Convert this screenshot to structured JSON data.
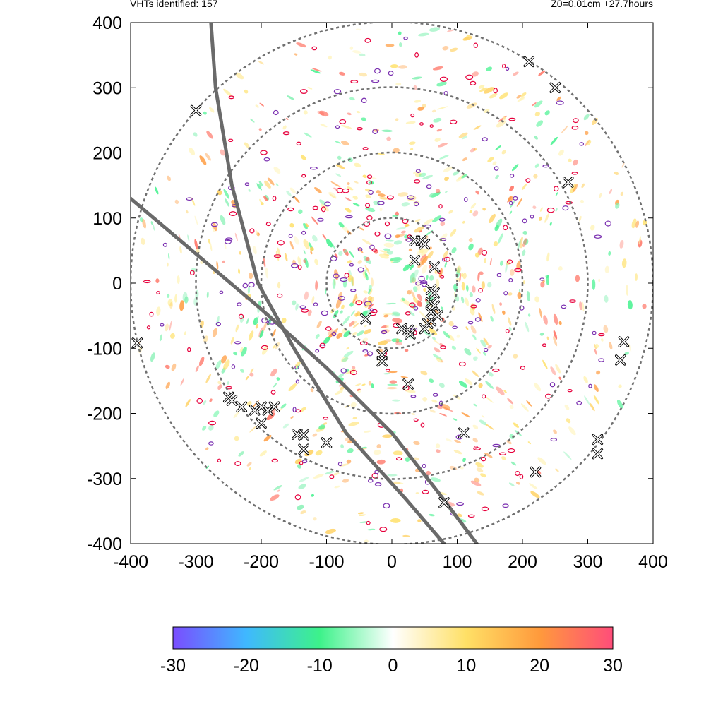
{
  "header": {
    "left_text": "VHTs identified: 157",
    "right_text": "Z0=0.01cm  +27.7hours"
  },
  "chart_data": {
    "type": "scatter",
    "title": "",
    "xlabel": "",
    "ylabel": "",
    "xlim": [
      -400,
      400
    ],
    "ylim": [
      -400,
      400
    ],
    "xticks": [
      "-400",
      "-300",
      "-200",
      "-100",
      "0",
      "100",
      "200",
      "300",
      "400"
    ],
    "yticks": [
      "400",
      "300",
      "200",
      "100",
      "0",
      "-100",
      "-200",
      "-300",
      "-400"
    ],
    "range_rings_radius": [
      100,
      200,
      300,
      400
    ],
    "track_lines": [
      {
        "points": [
          [
            -277,
            400
          ],
          [
            -270,
            300
          ],
          [
            -245,
            150
          ],
          [
            -205,
            0
          ],
          [
            -150,
            -100
          ],
          [
            -70,
            -230
          ],
          [
            20,
            -330
          ],
          [
            80,
            -400
          ]
        ]
      },
      {
        "points": [
          [
            -400,
            130
          ],
          [
            -300,
            45
          ],
          [
            -200,
            -40
          ],
          [
            -100,
            -130
          ],
          [
            0,
            -230
          ],
          [
            70,
            -320
          ],
          [
            130,
            -400
          ]
        ]
      }
    ],
    "vht_markers": [
      [
        -300,
        265
      ],
      [
        210,
        340
      ],
      [
        250,
        300
      ],
      [
        270,
        155
      ],
      [
        -390,
        -92
      ],
      [
        355,
        -90
      ],
      [
        350,
        -118
      ],
      [
        -250,
        -175
      ],
      [
        -245,
        -180
      ],
      [
        -230,
        -190
      ],
      [
        -210,
        -195
      ],
      [
        -200,
        -190
      ],
      [
        -190,
        -195
      ],
      [
        -200,
        -215
      ],
      [
        -180,
        -190
      ],
      [
        -145,
        -232
      ],
      [
        -135,
        -233
      ],
      [
        -135,
        -255
      ],
      [
        -100,
        -245
      ],
      [
        -40,
        -55
      ],
      [
        -15,
        -110
      ],
      [
        -15,
        -120
      ],
      [
        15,
        -70
      ],
      [
        25,
        -72
      ],
      [
        28,
        -78
      ],
      [
        25,
        -155
      ],
      [
        35,
        65
      ],
      [
        45,
        65
      ],
      [
        50,
        60
      ],
      [
        35,
        35
      ],
      [
        65,
        25
      ],
      [
        60,
        -10
      ],
      [
        65,
        -15
      ],
      [
        60,
        -30
      ],
      [
        65,
        -35
      ],
      [
        60,
        -45
      ],
      [
        70,
        -50
      ],
      [
        60,
        -58
      ],
      [
        55,
        -62
      ],
      [
        50,
        -70
      ],
      [
        110,
        -230
      ],
      [
        220,
        -290
      ],
      [
        80,
        -337
      ],
      [
        315,
        -240
      ],
      [
        315,
        -262
      ]
    ],
    "colorbar": {
      "min": -30,
      "max": 30,
      "ticks": [
        "-30",
        "-20",
        "-10",
        "0",
        "10",
        "20",
        "30"
      ],
      "colors": [
        "#7a4dff",
        "#3fb8ff",
        "#3df28a",
        "#ffffff",
        "#ffe066",
        "#ff9a3c",
        "#ff4d7a"
      ]
    },
    "grid": false,
    "legend": "none"
  }
}
